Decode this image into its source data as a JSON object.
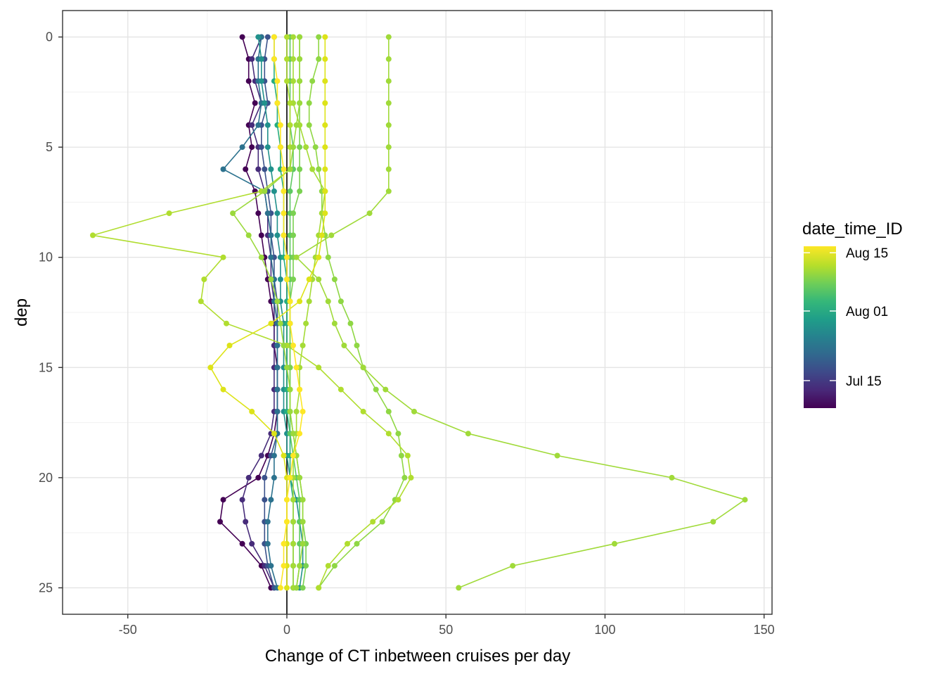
{
  "chart_data": {
    "type": "line",
    "xlabel": "Change of CT inbetween cruises per day",
    "ylabel": "dep",
    "xlim": [
      -70.5,
      152.5
    ],
    "ylim": [
      26.2,
      -1.2
    ],
    "x_ticks": [
      -50,
      0,
      50,
      100,
      150
    ],
    "x_tick_labels": [
      "-50",
      "0",
      "50",
      "100",
      "150"
    ],
    "y_ticks": [
      0,
      5,
      10,
      15,
      20,
      25
    ],
    "y_tick_labels": [
      "0",
      "5",
      "10",
      "15",
      "20",
      "25"
    ],
    "vline_x": 0,
    "grid": true,
    "legend": {
      "title": "date_time_ID",
      "position": "right",
      "labels": [
        "Aug 15",
        "Aug 01",
        "Jul 15"
      ],
      "label_fractions": [
        0.96,
        0.6,
        0.17
      ],
      "colors": [
        "#fde725",
        "#b5de2b",
        "#6ece58",
        "#35b779",
        "#1f9e89",
        "#26828e",
        "#31688e",
        "#3e4989",
        "#482878",
        "#440154"
      ]
    },
    "depths": [
      0,
      1,
      2,
      3,
      4,
      5,
      6,
      7,
      8,
      9,
      10,
      11,
      12,
      13,
      14,
      15,
      16,
      17,
      18,
      19,
      20,
      21,
      22,
      23,
      24,
      25
    ],
    "series": [
      {
        "color": "#440154",
        "x": [
          -14,
          -12,
          -12,
          -10,
          -12,
          -11,
          -13,
          -10,
          -9,
          -8,
          -7,
          -6,
          -5,
          -4,
          -4,
          -3,
          -3,
          -3,
          -4,
          -6,
          -9,
          -20,
          -21,
          -14,
          -8,
          -5
        ]
      },
      {
        "color": "#472c7a",
        "x": [
          -8,
          -11,
          -10,
          -8,
          -11,
          -9,
          -9,
          -7,
          -6,
          -6,
          -5,
          -5,
          -4,
          -4,
          -4,
          -4,
          -4,
          -4,
          -5,
          -8,
          -12,
          -14,
          -13,
          -11,
          -7,
          -4
        ]
      },
      {
        "color": "#3b528b",
        "x": [
          -6,
          -7,
          -7,
          -6,
          -8,
          -8,
          -7,
          -6,
          -5,
          -5,
          -4,
          -4,
          -3,
          -3,
          -3,
          -3,
          -3,
          -3,
          -3,
          -5,
          -7,
          -7,
          -7,
          -7,
          -6,
          -4
        ]
      },
      {
        "color": "#2c728e",
        "x": [
          -8,
          -9,
          -9,
          -8,
          -9,
          -14,
          -20,
          -7,
          -6,
          -5,
          -5,
          -4,
          -4,
          -3,
          -3,
          -3,
          -3,
          -3,
          -3,
          -4,
          -4,
          -5,
          -6,
          -6,
          -5,
          -3
        ]
      },
      {
        "color": "#21918c",
        "x": [
          -9,
          -8,
          -8,
          -7,
          -6,
          -6,
          -5,
          -4,
          -3,
          -3,
          -2,
          -2,
          -2,
          -1,
          -1,
          -1,
          -1,
          -1,
          0,
          0,
          1,
          3,
          4,
          5,
          5,
          4
        ]
      },
      {
        "color": "#27ad81",
        "x": [
          -4,
          -4,
          -4,
          -3,
          -3,
          -2,
          -2,
          -1,
          -1,
          -1,
          -1,
          0,
          0,
          0,
          0,
          0,
          0,
          0,
          1,
          1,
          1,
          2,
          2,
          2,
          2,
          2
        ]
      },
      {
        "color": "#5ec962",
        "x": [
          1,
          1,
          1,
          1,
          1,
          2,
          2,
          1,
          1,
          1,
          1,
          1,
          1,
          1,
          1,
          1,
          1,
          1,
          1,
          2,
          3,
          4,
          4,
          4,
          4,
          3
        ]
      },
      {
        "color": "#7ad151",
        "x": [
          4,
          4,
          4,
          4,
          4,
          4,
          4,
          4,
          2,
          2,
          2,
          2,
          1,
          1,
          1,
          1,
          1,
          1,
          2,
          3,
          4,
          5,
          5,
          6,
          6,
          5
        ]
      },
      {
        "color": "#8fd744",
        "x": [
          10,
          10,
          8,
          7,
          7,
          9,
          10,
          11,
          11,
          12,
          13,
          15,
          17,
          20,
          22,
          24,
          28,
          32,
          35,
          36,
          37,
          34,
          30,
          22,
          15,
          10
        ]
      },
      {
        "color": "#a0da39",
        "x": [
          32,
          32,
          32,
          32,
          32,
          32,
          32,
          32,
          26,
          14,
          3,
          10,
          13,
          15,
          18,
          24,
          31,
          40,
          57,
          85,
          121,
          144,
          134,
          103,
          71,
          54
        ]
      },
      {
        "color": "#a5db36",
        "x": [
          2,
          2,
          2,
          2,
          4,
          6,
          8,
          12,
          11,
          10,
          9,
          8,
          7,
          6,
          5,
          4,
          4,
          3,
          3,
          2,
          2,
          2,
          2,
          2,
          2,
          2
        ]
      },
      {
        "color": "#b0dd2f",
        "x": [
          0,
          0,
          0,
          1,
          1,
          1,
          1,
          -8,
          -37,
          -61,
          -20,
          -26,
          -27,
          -19,
          0,
          10,
          17,
          24,
          32,
          38,
          39,
          35,
          27,
          19,
          13,
          10
        ]
      },
      {
        "color": "#9bd93c",
        "x": [
          4,
          4,
          4,
          4,
          3,
          2,
          1,
          -7,
          -17,
          -12,
          -8,
          -5,
          -3,
          -2,
          -1,
          0,
          1,
          1,
          2,
          3,
          4,
          5,
          5,
          5,
          4,
          3
        ]
      },
      {
        "color": "#dde318",
        "x": [
          12,
          12,
          12,
          12,
          12,
          12,
          12,
          12,
          12,
          11,
          10,
          7,
          4,
          -5,
          -18,
          -24,
          -20,
          -11,
          -4,
          -1,
          0,
          0,
          0,
          0,
          0,
          0
        ]
      },
      {
        "color": "#fde725",
        "x": [
          -4,
          -4,
          -3,
          -3,
          -2,
          -2,
          -1,
          -1,
          -1,
          -1,
          0,
          0,
          1,
          1,
          2,
          3,
          4,
          5,
          4,
          2,
          1,
          0,
          0,
          -1,
          -1,
          -2
        ]
      }
    ]
  }
}
